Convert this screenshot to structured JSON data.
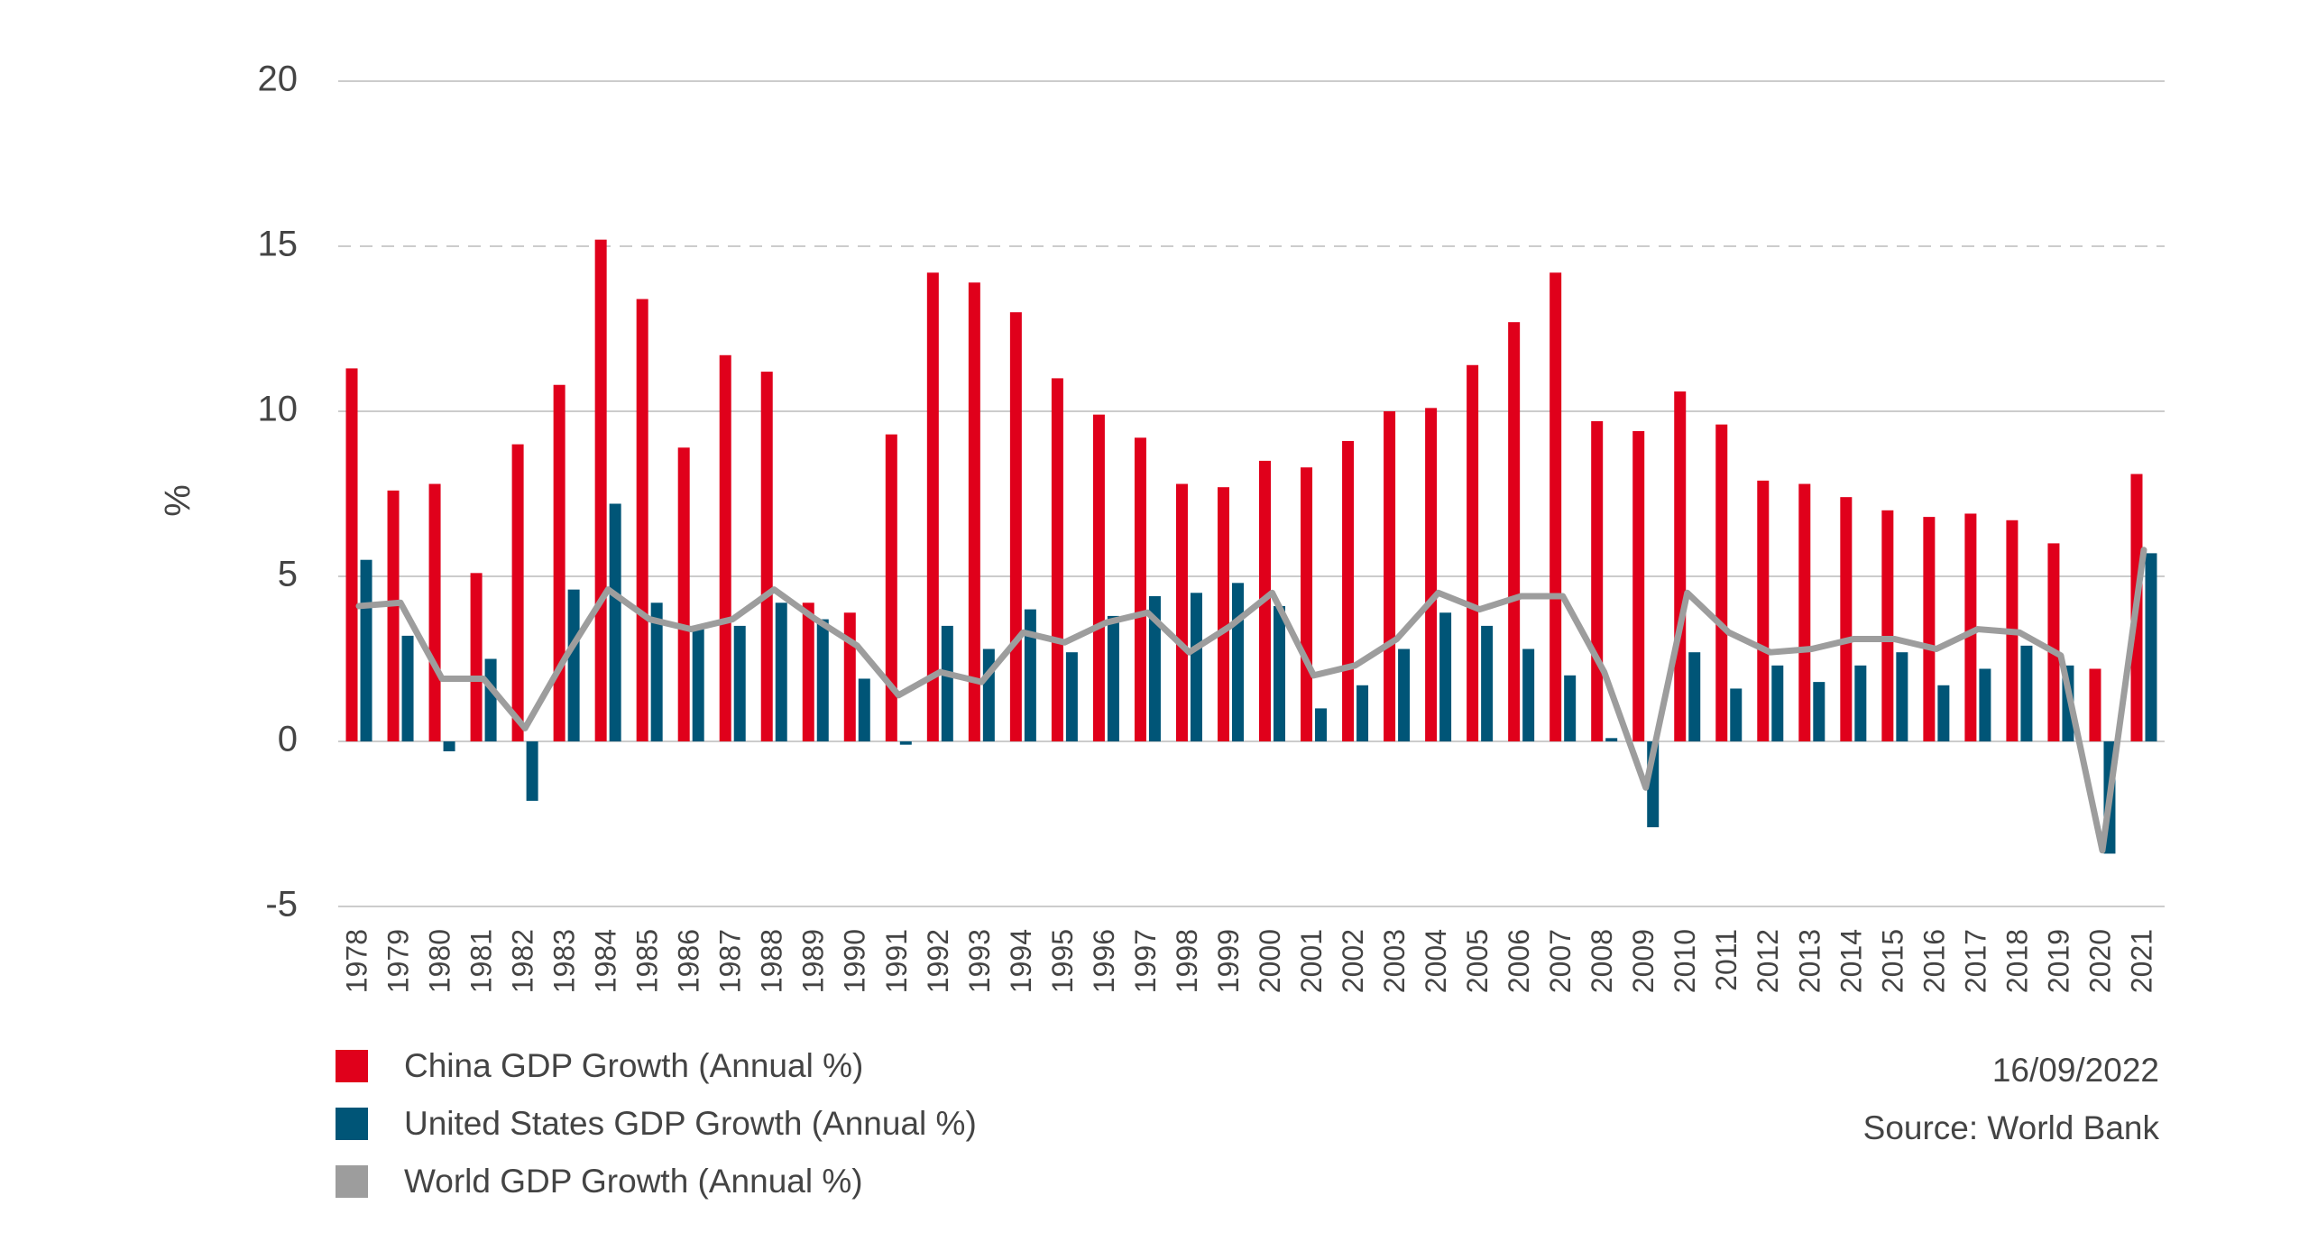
{
  "chart_data": {
    "type": "bar",
    "ylabel": "%",
    "ylim": [
      -5,
      20
    ],
    "yticks": [
      20,
      15,
      10,
      5,
      0,
      -5
    ],
    "ytick_labels": [
      "20",
      "15",
      "10",
      "5",
      "0",
      "-5"
    ],
    "categories": [
      "1978",
      "1979",
      "1980",
      "1981",
      "1982",
      "1983",
      "1984",
      "1985",
      "1986",
      "1987",
      "1988",
      "1989",
      "1990",
      "1991",
      "1992",
      "1993",
      "1994",
      "1995",
      "1996",
      "1997",
      "1998",
      "1999",
      "2000",
      "2001",
      "2002",
      "2003",
      "2004",
      "2005",
      "2006",
      "2007",
      "2008",
      "2009",
      "2010",
      "2011",
      "2012",
      "2013",
      "2014",
      "2015",
      "2016",
      "2017",
      "2018",
      "2019",
      "2020",
      "2021"
    ],
    "series": [
      {
        "name": "China GDP Growth (Annual %)",
        "kind": "bar",
        "color": "#e0001b",
        "values": [
          11.3,
          7.6,
          7.8,
          5.1,
          9.0,
          10.8,
          15.2,
          13.4,
          8.9,
          11.7,
          11.2,
          4.2,
          3.9,
          9.3,
          14.2,
          13.9,
          13.0,
          11.0,
          9.9,
          9.2,
          7.8,
          7.7,
          8.5,
          8.3,
          9.1,
          10.0,
          10.1,
          11.4,
          12.7,
          14.2,
          9.7,
          9.4,
          10.6,
          9.6,
          7.9,
          7.8,
          7.4,
          7.0,
          6.8,
          6.9,
          6.7,
          6.0,
          2.2,
          8.1
        ]
      },
      {
        "name": "United States GDP Growth (Annual %)",
        "kind": "bar",
        "color": "#005577",
        "values": [
          5.5,
          3.2,
          -0.3,
          2.5,
          -1.8,
          4.6,
          7.2,
          4.2,
          3.5,
          3.5,
          4.2,
          3.7,
          1.9,
          -0.1,
          3.5,
          2.8,
          4.0,
          2.7,
          3.8,
          4.4,
          4.5,
          4.8,
          4.1,
          1.0,
          1.7,
          2.8,
          3.9,
          3.5,
          2.8,
          2.0,
          0.1,
          -2.6,
          2.7,
          1.6,
          2.3,
          1.8,
          2.3,
          2.7,
          1.7,
          2.2,
          2.9,
          2.3,
          -3.4,
          5.7
        ]
      },
      {
        "name": "World GDP Growth (Annual %)",
        "kind": "line",
        "color": "#9d9d9d",
        "values": [
          4.1,
          4.2,
          1.9,
          1.9,
          0.4,
          2.6,
          4.6,
          3.7,
          3.4,
          3.7,
          4.6,
          3.7,
          2.9,
          1.4,
          2.1,
          1.8,
          3.3,
          3.0,
          3.6,
          3.9,
          2.7,
          3.5,
          4.5,
          2.0,
          2.3,
          3.1,
          4.5,
          4.0,
          4.4,
          4.4,
          2.1,
          -1.4,
          4.5,
          3.3,
          2.7,
          2.8,
          3.1,
          3.1,
          2.8,
          3.4,
          3.3,
          2.6,
          -3.3,
          5.8
        ]
      }
    ],
    "grid": true,
    "legend_position": "bottom-left"
  },
  "meta": {
    "date": "16/09/2022",
    "source": "Source: World Bank"
  }
}
